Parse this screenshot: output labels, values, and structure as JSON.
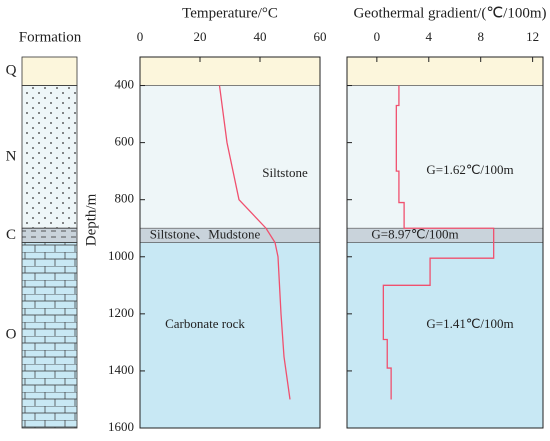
{
  "formation": {
    "title": "Formation",
    "layers": [
      {
        "label": "Q",
        "top": 300,
        "bottom": 400,
        "color": "#fcf6dc"
      },
      {
        "label": "N",
        "top": 400,
        "bottom": 900,
        "color": "#eef6f8"
      },
      {
        "label": "C",
        "top": 900,
        "bottom": 950,
        "color": "#c9d3db"
      },
      {
        "label": "O",
        "top": 950,
        "bottom": 1600,
        "color": "#c8e8f4"
      }
    ]
  },
  "chart_data": [
    {
      "type": "line",
      "title": "Temperature/°C",
      "y_label": "Depth/m",
      "xlim": [
        0,
        60
      ],
      "xticks": [
        0,
        20,
        40,
        60
      ],
      "ylim": [
        300,
        1600
      ],
      "yticks": [
        400,
        600,
        800,
        1000,
        1200,
        1400,
        1600
      ],
      "annotations": [
        "Siltstone",
        "Siltstone、Mudstone",
        "Carbonate rock"
      ],
      "series": [
        {
          "color": "#f0506e",
          "x": [
            26.5,
            29,
            31,
            33,
            42,
            45,
            46,
            47,
            48,
            50
          ],
          "y": [
            400,
            600,
            700,
            800,
            900,
            950,
            1000,
            1200,
            1350,
            1500
          ]
        }
      ]
    },
    {
      "type": "line",
      "title": "Geothermal gradient/(℃/100m)",
      "xlim": [
        -2.3,
        12.8
      ],
      "xticks": [
        0,
        4,
        8,
        12
      ],
      "ylim": [
        300,
        1600
      ],
      "annotations": [
        "G=1.62℃/100m",
        "G=8.97℃/100m",
        "G=1.41℃/100m"
      ],
      "series": [
        {
          "color": "#f0506e",
          "x": [
            1.7,
            1.7,
            1.5,
            1.5,
            1.7,
            1.7,
            2.1,
            2.1,
            9.0,
            9.0,
            4.1,
            4.1,
            0.5,
            0.5,
            0.8,
            0.8,
            1.1,
            1.1
          ],
          "y": [
            400,
            470,
            470,
            700,
            700,
            810,
            810,
            900,
            900,
            1005,
            1005,
            1100,
            1100,
            1290,
            1290,
            1390,
            1390,
            1500
          ]
        }
      ]
    }
  ]
}
